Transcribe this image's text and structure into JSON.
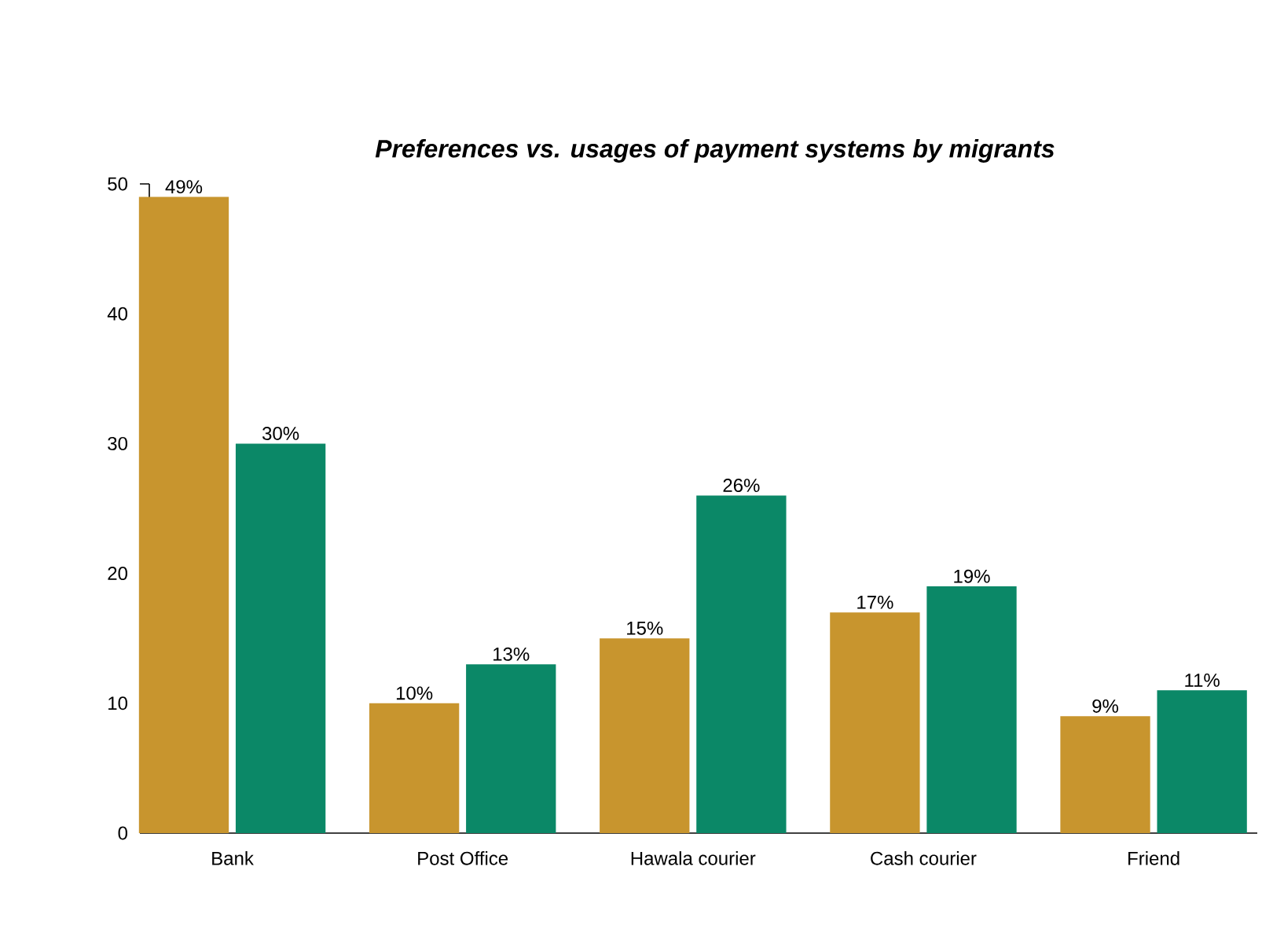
{
  "chart_data": {
    "type": "bar",
    "title": "Preferences vs. usages of payment systems by migrants",
    "categories": [
      "Bank",
      "Post Office",
      "Hawala courier",
      "Cash courier",
      "Friend"
    ],
    "series": [
      {
        "color": "#c8952e",
        "values": [
          49,
          10,
          15,
          17,
          9
        ],
        "value_labels": [
          "49%",
          "10%",
          "15%",
          "17%",
          "9%"
        ]
      },
      {
        "color": "#0b8867",
        "values": [
          30,
          13,
          26,
          19,
          11
        ],
        "value_labels": [
          "30%",
          "13%",
          "26%",
          "19%",
          "11%"
        ]
      }
    ],
    "ylim": [
      0,
      50
    ],
    "yticks": [
      0,
      10,
      20,
      30,
      40,
      50
    ]
  }
}
